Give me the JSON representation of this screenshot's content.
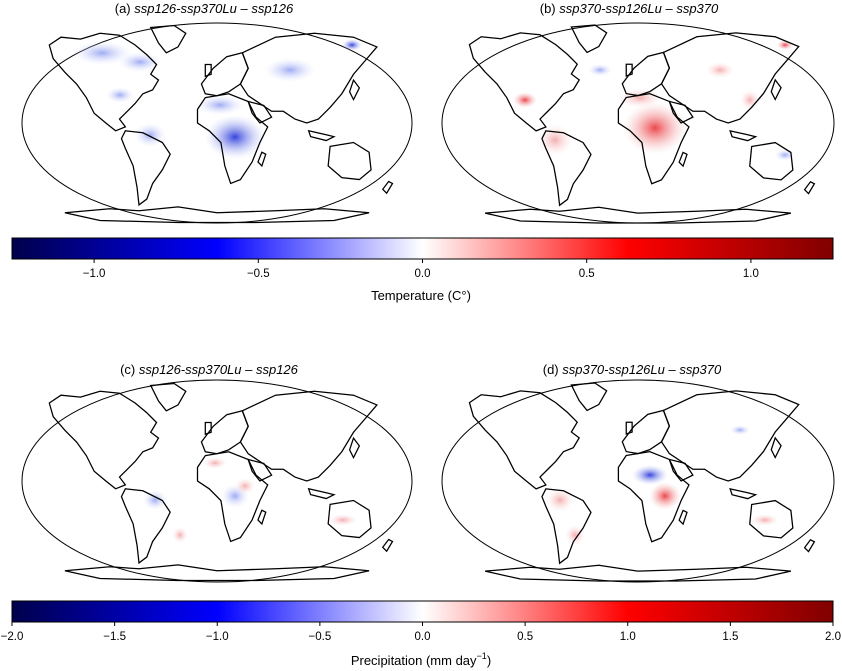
{
  "panels": [
    {
      "letter": "(a)",
      "title": " ssp126-ssp370Lu – ssp126",
      "variable": "temperature"
    },
    {
      "letter": "(b)",
      "title": " ssp370-ssp126Lu – ssp370",
      "variable": "temperature"
    },
    {
      "letter": "(c)",
      "title": " ssp126-ssp370Lu – ssp126",
      "variable": "precipitation"
    },
    {
      "letter": "(d)",
      "title": " ssp370-ssp126Lu – ssp370",
      "variable": "precipitation"
    }
  ],
  "colorbars": {
    "temperature": {
      "label": "Temperature (C°)",
      "range": [
        -1.25,
        1.25
      ],
      "ticks": [
        -1.0,
        -0.5,
        0.0,
        0.5,
        1.0
      ],
      "tick_labels": [
        "−1.0",
        "−0.5",
        "0.0",
        "0.5",
        "1.0"
      ]
    },
    "precipitation": {
      "label_main": "Precipitation (mm day",
      "label_sup": "−1",
      "label_end": ")",
      "range": [
        -2.0,
        2.0
      ],
      "ticks": [
        -2.0,
        -1.5,
        -1.0,
        -0.5,
        0.0,
        0.5,
        1.0,
        1.5,
        2.0
      ],
      "tick_labels": [
        "−2.0",
        "−1.5",
        "−1.0",
        "−0.5",
        "0.0",
        "0.5",
        "1.0",
        "1.5",
        "2.0"
      ]
    }
  },
  "colormap": {
    "name": "seismic",
    "stops": [
      "#00004c",
      "#0000ff",
      "#ffffff",
      "#ff0000",
      "#800000"
    ]
  }
}
